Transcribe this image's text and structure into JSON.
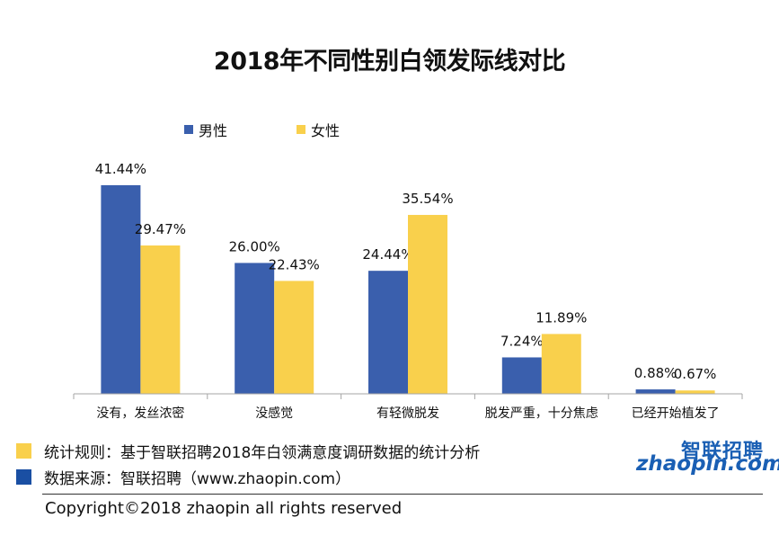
{
  "chart_data": {
    "type": "bar",
    "title": "2018年不同性别白领发际线对比",
    "categories": [
      "没有，发丝浓密",
      "没感觉",
      "有轻微脱发",
      "脱发严重，十分焦虑",
      "已经开始植发了"
    ],
    "series": [
      {
        "name": "男性",
        "color": "#3a5fad",
        "values": [
          41.44,
          26.0,
          24.44,
          7.24,
          0.88
        ],
        "labels": [
          "41.44%",
          "26.00%",
          "24.44%",
          "7.24%",
          "0.88%"
        ]
      },
      {
        "name": "女性",
        "color": "#f9d04c",
        "values": [
          29.47,
          22.43,
          35.54,
          11.89,
          0.67
        ],
        "labels": [
          "29.47%",
          "22.43%",
          "35.54%",
          "11.89%",
          "0.67%"
        ]
      }
    ],
    "ylim": [
      0,
      45
    ],
    "xlabel": "",
    "ylabel": "",
    "legend": "top-left"
  },
  "footnotes": [
    {
      "text": "统计规则：基于智联招聘2018年白领满意度调研数据的统计分析",
      "color": "#f9d04c"
    },
    {
      "text": "数据来源：智联招聘（www.zhaopin.com）",
      "color": "#1a4fa3"
    }
  ],
  "copyright": "Copyright©2018 zhaopin all rights reserved",
  "logo": {
    "cn": "智联招聘",
    "en": "zhaopin.com"
  }
}
